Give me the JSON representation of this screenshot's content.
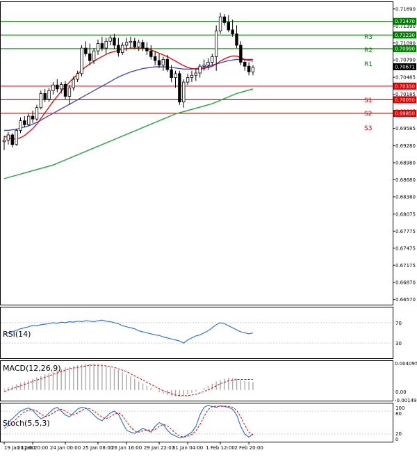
{
  "chart_data": {
    "type": "candlestick",
    "main": {
      "ylim": [
        0.6648,
        0.7181
      ],
      "y_ticks": [
        "0.71690",
        "0.71390",
        "0.71090",
        "0.70790",
        "0.70485",
        "0.70185",
        "0.69885",
        "0.69585",
        "0.69280",
        "0.68980",
        "0.68680",
        "0.68380",
        "0.68075",
        "0.67775",
        "0.67475",
        "0.67175",
        "0.66870",
        "0.66570"
      ],
      "current_price": "0.70671",
      "levels": [
        {
          "name": "R3",
          "value": 0.7147,
          "label": "0.71470",
          "color": "#008000"
        },
        {
          "name": "R2",
          "value": 0.7123,
          "label": "0.71230",
          "color": "#008000"
        },
        {
          "name": "R1",
          "value": 0.7099,
          "label": "0.70990",
          "color": "#008000"
        },
        {
          "name": "S1",
          "value": 0.7033,
          "label": "0.70330",
          "color": "#e00000"
        },
        {
          "name": "S2",
          "value": 0.7009,
          "label": "0.70090",
          "color": "#e00000"
        },
        {
          "name": "S3",
          "value": 0.6985,
          "label": "0.69850",
          "color": "#e00000"
        }
      ],
      "candles": [
        [
          0.6935,
          0.6945,
          0.692,
          0.6938
        ],
        [
          0.6938,
          0.6952,
          0.693,
          0.6947
        ],
        [
          0.6947,
          0.695,
          0.6925,
          0.693
        ],
        [
          0.693,
          0.6958,
          0.6928,
          0.6955
        ],
        [
          0.6955,
          0.6978,
          0.695,
          0.6972
        ],
        [
          0.6972,
          0.698,
          0.696,
          0.6965
        ],
        [
          0.6965,
          0.6985,
          0.6962,
          0.698
        ],
        [
          0.698,
          0.699,
          0.6968,
          0.6975
        ],
        [
          0.6975,
          0.7,
          0.6972,
          0.6995
        ],
        [
          0.6995,
          0.7025,
          0.6992,
          0.702
        ],
        [
          0.702,
          0.7028,
          0.7005,
          0.701
        ],
        [
          0.701,
          0.703,
          0.7005,
          0.7025
        ],
        [
          0.7025,
          0.704,
          0.7018,
          0.7035
        ],
        [
          0.7035,
          0.7045,
          0.7022,
          0.7028
        ],
        [
          0.7028,
          0.704,
          0.702,
          0.7036
        ],
        [
          0.7036,
          0.7042,
          0.701,
          0.7015
        ],
        [
          0.7015,
          0.7035,
          0.7,
          0.703
        ],
        [
          0.703,
          0.705,
          0.7025,
          0.7045
        ],
        [
          0.7045,
          0.706,
          0.704,
          0.7055
        ],
        [
          0.7055,
          0.7105,
          0.705,
          0.71
        ],
        [
          0.71,
          0.7112,
          0.7085,
          0.709
        ],
        [
          0.709,
          0.7108,
          0.707,
          0.7078
        ],
        [
          0.7078,
          0.71,
          0.7072,
          0.7095
        ],
        [
          0.7095,
          0.7115,
          0.7088,
          0.7108
        ],
        [
          0.7108,
          0.712,
          0.7095,
          0.71
        ],
        [
          0.71,
          0.7118,
          0.709,
          0.7112
        ],
        [
          0.7112,
          0.7122,
          0.7105,
          0.7118
        ],
        [
          0.7118,
          0.7125,
          0.7098,
          0.7105
        ],
        [
          0.7105,
          0.7118,
          0.7085,
          0.7092
        ],
        [
          0.7092,
          0.711,
          0.7088,
          0.7105
        ],
        [
          0.7105,
          0.7118,
          0.7095,
          0.711
        ],
        [
          0.711,
          0.712,
          0.71,
          0.7112
        ],
        [
          0.7112,
          0.7118,
          0.7098,
          0.7102
        ],
        [
          0.7102,
          0.7115,
          0.7095,
          0.711
        ],
        [
          0.711,
          0.7115,
          0.7095,
          0.71
        ],
        [
          0.71,
          0.711,
          0.7088,
          0.7095
        ],
        [
          0.7095,
          0.7105,
          0.708,
          0.7085
        ],
        [
          0.7085,
          0.7095,
          0.707,
          0.7078
        ],
        [
          0.7078,
          0.709,
          0.7065,
          0.707
        ],
        [
          0.707,
          0.7085,
          0.706,
          0.708
        ],
        [
          0.708,
          0.7088,
          0.7058,
          0.7062
        ],
        [
          0.7062,
          0.707,
          0.704,
          0.7048
        ],
        [
          0.7048,
          0.706,
          0.703,
          0.7055
        ],
        [
          0.7055,
          0.706,
          0.7,
          0.7005
        ],
        [
          0.7005,
          0.7045,
          0.6995,
          0.704
        ],
        [
          0.704,
          0.7055,
          0.7035,
          0.7048
        ],
        [
          0.7048,
          0.706,
          0.704,
          0.7052
        ],
        [
          0.7052,
          0.7062,
          0.7042,
          0.7056
        ],
        [
          0.7056,
          0.7072,
          0.7048,
          0.7068
        ],
        [
          0.7068,
          0.708,
          0.706,
          0.707
        ],
        [
          0.707,
          0.7082,
          0.7062,
          0.7075
        ],
        [
          0.7075,
          0.709,
          0.707,
          0.7085
        ],
        [
          0.7085,
          0.714,
          0.706,
          0.713
        ],
        [
          0.713,
          0.7162,
          0.7125,
          0.7155
        ],
        [
          0.7155,
          0.716,
          0.714,
          0.7145
        ],
        [
          0.7145,
          0.7158,
          0.7128,
          0.7132
        ],
        [
          0.7132,
          0.715,
          0.712,
          0.7125
        ],
        [
          0.7125,
          0.714,
          0.71,
          0.7105
        ],
        [
          0.7105,
          0.7112,
          0.707,
          0.7075
        ],
        [
          0.7075,
          0.708,
          0.706,
          0.7068
        ],
        [
          0.7068,
          0.7075,
          0.7052,
          0.7058
        ],
        [
          0.7058,
          0.707,
          0.7052,
          0.7066
        ]
      ],
      "ma_red": [
        0.6945,
        0.6942,
        0.694,
        0.694,
        0.6942,
        0.6946,
        0.6952,
        0.6958,
        0.6966,
        0.6976,
        0.6986,
        0.6996,
        0.7006,
        0.7015,
        0.7024,
        0.7032,
        0.704,
        0.7047,
        0.7054,
        0.7061,
        0.7067,
        0.7072,
        0.7077,
        0.7081,
        0.7085,
        0.7089,
        0.7092,
        0.7094,
        0.7096,
        0.7098,
        0.7099,
        0.71,
        0.71,
        0.71,
        0.71,
        0.7099,
        0.7097,
        0.7094,
        0.7091,
        0.7088,
        0.7085,
        0.7081,
        0.7077,
        0.7073,
        0.7069,
        0.7066,
        0.7064,
        0.7063,
        0.7063,
        0.7064,
        0.7066,
        0.7068,
        0.7072,
        0.7077,
        0.7081,
        0.7084,
        0.7086,
        0.7086,
        0.7083,
        0.708,
        0.7078,
        0.7077
      ],
      "ma_blue": [
        0.6955,
        0.6955,
        0.6956,
        0.6957,
        0.6959,
        0.6961,
        0.6963,
        0.6966,
        0.6969,
        0.6973,
        0.6977,
        0.6981,
        0.6985,
        0.6989,
        0.6993,
        0.6997,
        0.7001,
        0.7005,
        0.7009,
        0.7013,
        0.7017,
        0.7021,
        0.7025,
        0.7029,
        0.7033,
        0.7037,
        0.7041,
        0.7045,
        0.7049,
        0.7052,
        0.7055,
        0.7058,
        0.706,
        0.7062,
        0.7064,
        0.7065,
        0.7066,
        0.7067,
        0.7067,
        0.7067,
        0.7067,
        0.7066,
        0.7065,
        0.7064,
        0.7063,
        0.7063,
        0.7063,
        0.7064,
        0.7065,
        0.7066,
        0.7068,
        0.707,
        0.7072,
        0.7074,
        0.7076,
        0.7078,
        0.7079,
        0.708,
        0.708,
        0.708,
        0.708,
        0.708
      ],
      "ma_green": [
        0.687,
        0.6872,
        0.6874,
        0.6876,
        0.6878,
        0.688,
        0.6882,
        0.6884,
        0.6886,
        0.6888,
        0.689,
        0.6892,
        0.6894,
        0.6897,
        0.69,
        0.6903,
        0.6906,
        0.6909,
        0.6912,
        0.6915,
        0.6918,
        0.6921,
        0.6924,
        0.6927,
        0.693,
        0.6933,
        0.6936,
        0.6939,
        0.6942,
        0.6945,
        0.6948,
        0.6951,
        0.6954,
        0.6957,
        0.696,
        0.6963,
        0.6966,
        0.6969,
        0.6972,
        0.6975,
        0.6978,
        0.6981,
        0.6984,
        0.6986,
        0.6988,
        0.699,
        0.6992,
        0.6994,
        0.6996,
        0.6998,
        0.7,
        0.7002,
        0.7005,
        0.7008,
        0.7011,
        0.7014,
        0.7017,
        0.702,
        0.7022,
        0.7024,
        0.7026,
        0.7028
      ]
    },
    "rsi": {
      "label": "RSI(14)",
      "ylim": [
        0,
        100
      ],
      "ticks": [
        "70",
        "30"
      ],
      "values": [
        48,
        50,
        52,
        55,
        58,
        60,
        62,
        65,
        64,
        66,
        67,
        68,
        70,
        69,
        71,
        70,
        72,
        71,
        73,
        72,
        74,
        73,
        72,
        74,
        75,
        73,
        72,
        70,
        68,
        64,
        62,
        60,
        58,
        54,
        52,
        50,
        48,
        46,
        45,
        42,
        40,
        38,
        36,
        34,
        30,
        36,
        40,
        44,
        46,
        50,
        54,
        60,
        66,
        70,
        68,
        64,
        60,
        56,
        52,
        50,
        48,
        50
      ]
    },
    "macd": {
      "label": "MACD(12,26,9)",
      "ylim": [
        -0.001497,
        0.004095
      ],
      "ticks": [
        "0.004095",
        "0.00",
        "-0.001497"
      ],
      "hist": [
        0.0002,
        0.0004,
        0.0006,
        0.0008,
        0.001,
        0.0012,
        0.0014,
        0.0016,
        0.0018,
        0.002,
        0.0022,
        0.0024,
        0.0026,
        0.0028,
        0.003,
        0.0032,
        0.0033,
        0.0034,
        0.0035,
        0.0036,
        0.0037,
        0.0037,
        0.0037,
        0.0036,
        0.0035,
        0.0034,
        0.0032,
        0.003,
        0.0028,
        0.0025,
        0.0022,
        0.0019,
        0.0016,
        0.0012,
        0.0009,
        0.0006,
        0.0003,
        0.0,
        -0.0003,
        -0.0005,
        -0.0007,
        -0.0008,
        -0.0009,
        -0.0009,
        -0.0008,
        -0.0006,
        -0.0004,
        -0.0002,
        0.0,
        0.0003,
        0.0006,
        0.0009,
        0.0012,
        0.0014,
        0.0016,
        0.0017,
        0.0017,
        0.0016,
        0.0014,
        0.0013,
        0.0012,
        0.0011
      ],
      "signal": [
        -0.0002,
        0.0,
        0.0002,
        0.0004,
        0.0006,
        0.0008,
        0.001,
        0.0012,
        0.0014,
        0.0016,
        0.0018,
        0.002,
        0.0022,
        0.0024,
        0.0026,
        0.0028,
        0.003,
        0.0031,
        0.0032,
        0.0033,
        0.0034,
        0.0035,
        0.0035,
        0.0035,
        0.0035,
        0.0034,
        0.0033,
        0.0032,
        0.003,
        0.0028,
        0.0026,
        0.0023,
        0.002,
        0.0017,
        0.0014,
        0.0011,
        0.0008,
        0.0005,
        0.0002,
        -0.0001,
        -0.0003,
        -0.0005,
        -0.0007,
        -0.0008,
        -0.0008,
        -0.0008,
        -0.0007,
        -0.0006,
        -0.0004,
        -0.0002,
        0.0,
        0.0003,
        0.0006,
        0.0009,
        0.0011,
        0.0013,
        0.0014,
        0.0015,
        0.0015,
        0.0015,
        0.0015,
        0.0015
      ]
    },
    "stoch": {
      "label": "Stoch(5,5,3)",
      "ylim": [
        0,
        100
      ],
      "ticks": [
        "100",
        "80",
        "20",
        "0"
      ],
      "main": [
        40,
        50,
        60,
        70,
        80,
        85,
        88,
        82,
        70,
        60,
        65,
        75,
        85,
        90,
        80,
        70,
        65,
        75,
        85,
        90,
        88,
        80,
        70,
        60,
        55,
        65,
        75,
        80,
        72,
        50,
        30,
        25,
        22,
        28,
        35,
        30,
        25,
        40,
        50,
        45,
        30,
        20,
        15,
        10,
        12,
        18,
        25,
        40,
        70,
        90,
        95,
        92,
        90,
        94,
        92,
        90,
        85,
        70,
        40,
        20,
        12,
        20
      ],
      "signal": [
        35,
        42,
        50,
        60,
        70,
        78,
        83,
        84,
        80,
        72,
        66,
        68,
        75,
        82,
        85,
        80,
        73,
        70,
        75,
        82,
        87,
        86,
        80,
        72,
        64,
        60,
        65,
        72,
        76,
        68,
        52,
        38,
        28,
        25,
        28,
        31,
        30,
        32,
        40,
        45,
        42,
        32,
        22,
        15,
        12,
        14,
        19,
        28,
        45,
        66,
        84,
        92,
        93,
        92,
        93,
        92,
        90,
        82,
        65,
        43,
        25,
        18
      ]
    },
    "x_labels": [
      "19 Jan 12:00",
      "20 Jan 20:00",
      "24 Jan 00:00",
      "25 Jan 08:00",
      "26 Jan 16:00",
      "29 Jan 22:01",
      "31 Jan 04:00",
      "1 Feb 12:00",
      "2 Feb 20:00"
    ],
    "x_label_candle_index": [
      0,
      7,
      15,
      23,
      30,
      38,
      45,
      53,
      60
    ]
  }
}
